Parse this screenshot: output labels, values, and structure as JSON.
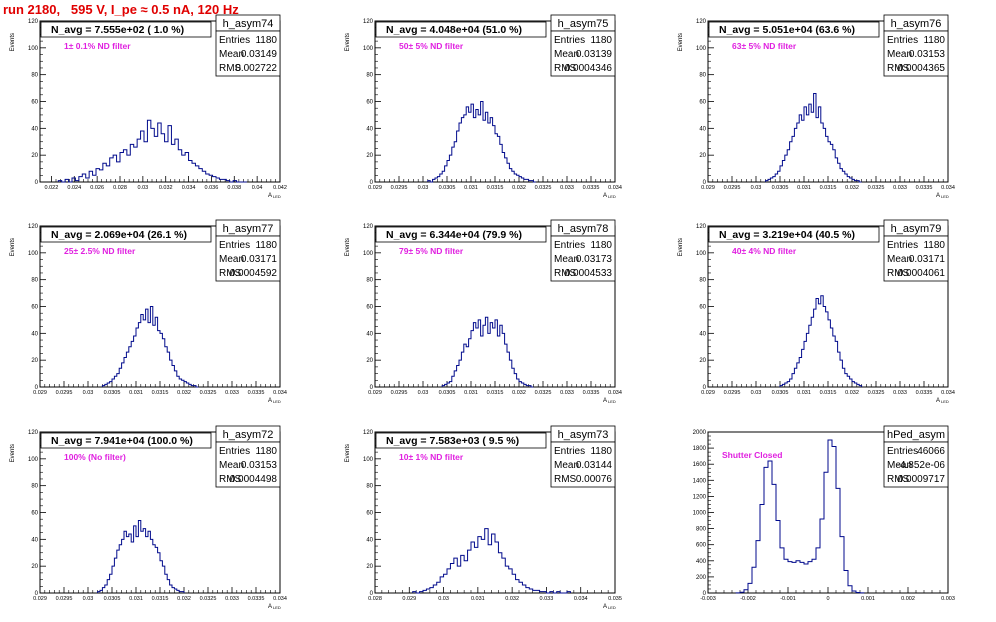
{
  "page_title": "run 2180,   595 V, I_pe ≈ 0.5 nA, 120 Hz",
  "chart_data": [
    {
      "type": "bar",
      "histogram": "h_asym74",
      "title_box": "h_asym74",
      "stats": {
        "entries": "1180",
        "mean": "0.03149",
        "rms": "0.002722"
      },
      "n_avg": "N_avg = 7.555e+02 ( 1.0 %)",
      "filter": "1± 0.1% ND filter",
      "ylabel": "Events",
      "xlabel": "A",
      "xlabel_sub": "LED",
      "xlim": [
        0.021,
        0.042
      ],
      "ylim": [
        0,
        120
      ],
      "xticks": [
        0.022,
        0.024,
        0.026,
        0.028,
        0.03,
        0.032,
        0.034,
        0.036,
        0.038,
        0.04,
        0.042
      ],
      "xtick_labels": [
        "0.022",
        "0.024",
        "0.026",
        "0.028",
        "0.03",
        "0.032",
        "0.034",
        "0.036",
        "0.038",
        "0.04",
        "0.042"
      ],
      "yticks": [
        0,
        20,
        40,
        60,
        80,
        100,
        120
      ],
      "bins": {
        "x0": 0.0226,
        "width": 0.0003,
        "values": [
          1,
          0,
          2,
          0,
          3,
          1,
          4,
          6,
          3,
          8,
          5,
          10,
          9,
          14,
          12,
          18,
          20,
          15,
          22,
          24,
          20,
          28,
          26,
          32,
          38,
          30,
          46,
          40,
          34,
          44,
          36,
          30,
          42,
          28,
          32,
          24,
          20,
          22,
          16,
          14,
          12,
          10,
          8,
          6,
          5,
          4,
          3,
          2,
          2,
          1,
          0,
          1,
          0,
          0,
          0
        ]
      }
    },
    {
      "type": "bar",
      "histogram": "h_asym75",
      "title_box": "h_asym75",
      "stats": {
        "entries": "1180",
        "mean": "0.03139",
        "rms": "0.0004346"
      },
      "n_avg": "N_avg = 4.048e+04 (51.0 %)",
      "filter": "50± 5% ND filter",
      "ylabel": "Events",
      "xlabel": "A",
      "xlabel_sub": "LED",
      "xlim": [
        0.029,
        0.034
      ],
      "ylim": [
        0,
        120
      ],
      "xticks": [
        0.029,
        0.0295,
        0.03,
        0.0305,
        0.031,
        0.0315,
        0.032,
        0.0325,
        0.033,
        0.0335,
        0.034
      ],
      "xtick_labels": [
        "0.029",
        "0.0295",
        "0.03",
        "0.0305",
        "0.031",
        "0.0315",
        "0.032",
        "0.0325",
        "0.033",
        "0.0335",
        "0.034"
      ],
      "yticks": [
        0,
        20,
        40,
        60,
        80,
        100,
        120
      ],
      "bins": {
        "x0": 0.0301,
        "width": 5e-05,
        "values": [
          1,
          0,
          2,
          3,
          4,
          6,
          8,
          12,
          16,
          20,
          26,
          30,
          38,
          44,
          48,
          50,
          56,
          52,
          58,
          48,
          54,
          50,
          60,
          46,
          52,
          44,
          48,
          42,
          36,
          34,
          28,
          22,
          18,
          14,
          10,
          8,
          6,
          5,
          4,
          3,
          2,
          2,
          1,
          1,
          0
        ]
      }
    },
    {
      "type": "bar",
      "histogram": "h_asym76",
      "title_box": "h_asym76",
      "stats": {
        "entries": "1180",
        "mean": "0.03153",
        "rms": "0.0004365"
      },
      "n_avg": "N_avg = 5.051e+04 (63.6 %)",
      "filter": "63± 5% ND filter",
      "ylabel": "Events",
      "xlabel": "A",
      "xlabel_sub": "LED",
      "xlim": [
        0.029,
        0.034
      ],
      "ylim": [
        0,
        120
      ],
      "xticks": [
        0.029,
        0.0295,
        0.03,
        0.0305,
        0.031,
        0.0315,
        0.032,
        0.0325,
        0.033,
        0.0335,
        0.034
      ],
      "xtick_labels": [
        "0.029",
        "0.0295",
        "0.03",
        "0.0305",
        "0.031",
        "0.0315",
        "0.032",
        "0.0325",
        "0.033",
        "0.0335",
        "0.034"
      ],
      "yticks": [
        0,
        20,
        40,
        60,
        80,
        100,
        120
      ],
      "bins": {
        "x0": 0.0302,
        "width": 5e-05,
        "values": [
          1,
          2,
          3,
          4,
          6,
          8,
          12,
          16,
          20,
          24,
          30,
          34,
          40,
          44,
          50,
          46,
          56,
          50,
          58,
          52,
          66,
          48,
          56,
          44,
          40,
          34,
          30,
          28,
          24,
          18,
          14,
          10,
          8,
          6,
          4,
          3,
          2,
          1,
          1,
          0
        ]
      }
    },
    {
      "type": "bar",
      "histogram": "h_asym77",
      "title_box": "h_asym77",
      "stats": {
        "entries": "1180",
        "mean": "0.03171",
        "rms": "0.0004592"
      },
      "n_avg": "N_avg = 2.069e+04 (26.1 %)",
      "filter": "25± 2.5% ND filter",
      "ylabel": "Events",
      "xlabel": "A",
      "xlabel_sub": "LED",
      "xlim": [
        0.029,
        0.034
      ],
      "ylim": [
        0,
        120
      ],
      "xticks": [
        0.029,
        0.0295,
        0.03,
        0.0305,
        0.031,
        0.0315,
        0.032,
        0.0325,
        0.033,
        0.0335,
        0.034
      ],
      "xtick_labels": [
        "0.029",
        "0.0295",
        "0.03",
        "0.0305",
        "0.031",
        "0.0315",
        "0.032",
        "0.0325",
        "0.033",
        "0.0335",
        "0.034"
      ],
      "yticks": [
        0,
        20,
        40,
        60,
        80,
        100,
        120
      ],
      "bins": {
        "x0": 0.0303,
        "width": 5e-05,
        "values": [
          1,
          2,
          3,
          4,
          6,
          8,
          10,
          14,
          18,
          22,
          26,
          30,
          34,
          38,
          44,
          48,
          54,
          50,
          58,
          48,
          60,
          46,
          52,
          42,
          40,
          36,
          30,
          26,
          20,
          16,
          12,
          8,
          6,
          5,
          4,
          3,
          2,
          1,
          1,
          0
        ]
      }
    },
    {
      "type": "bar",
      "histogram": "h_asym78",
      "title_box": "h_asym78",
      "stats": {
        "entries": "1180",
        "mean": "0.03173",
        "rms": "0.0004533"
      },
      "n_avg": "N_avg = 6.344e+04 (79.9 %)",
      "filter": "79± 5% ND filter",
      "ylabel": "Events",
      "xlabel": "A",
      "xlabel_sub": "LED",
      "xlim": [
        0.029,
        0.034
      ],
      "ylim": [
        0,
        120
      ],
      "xticks": [
        0.029,
        0.0295,
        0.03,
        0.0305,
        0.031,
        0.0315,
        0.032,
        0.0325,
        0.033,
        0.0335,
        0.034
      ],
      "xtick_labels": [
        "0.029",
        "0.0295",
        "0.03",
        "0.0305",
        "0.031",
        "0.0315",
        "0.032",
        "0.0325",
        "0.033",
        "0.0335",
        "0.034"
      ],
      "yticks": [
        0,
        20,
        40,
        60,
        80,
        100,
        120
      ],
      "bins": {
        "x0": 0.0304,
        "width": 5e-05,
        "values": [
          1,
          2,
          3,
          4,
          8,
          12,
          16,
          20,
          26,
          32,
          30,
          36,
          42,
          48,
          44,
          50,
          38,
          46,
          52,
          40,
          48,
          44,
          50,
          38,
          46,
          40,
          32,
          26,
          20,
          14,
          10,
          6,
          4,
          3,
          2,
          1,
          1,
          0
        ]
      }
    },
    {
      "type": "bar",
      "histogram": "h_asym79",
      "title_box": "h_asym79",
      "stats": {
        "entries": "1180",
        "mean": "0.03171",
        "rms": "0.0004061"
      },
      "n_avg": "N_avg = 3.219e+04 (40.5 %)",
      "filter": "40± 4% ND filter",
      "ylabel": "Events",
      "xlabel": "A",
      "xlabel_sub": "LED",
      "xlim": [
        0.029,
        0.034
      ],
      "ylim": [
        0,
        120
      ],
      "xticks": [
        0.029,
        0.0295,
        0.03,
        0.0305,
        0.031,
        0.0315,
        0.032,
        0.0325,
        0.033,
        0.0335,
        0.034
      ],
      "xtick_labels": [
        "0.029",
        "0.0295",
        "0.03",
        "0.0305",
        "0.031",
        "0.0315",
        "0.032",
        "0.0325",
        "0.033",
        "0.0335",
        "0.034"
      ],
      "yticks": [
        0,
        20,
        40,
        60,
        80,
        100,
        120
      ],
      "bins": {
        "x0": 0.0305,
        "width": 5e-05,
        "values": [
          1,
          2,
          3,
          4,
          6,
          10,
          14,
          18,
          22,
          28,
          34,
          40,
          46,
          52,
          58,
          66,
          62,
          68,
          60,
          56,
          50,
          44,
          38,
          34,
          26,
          20,
          14,
          10,
          8,
          6,
          4,
          3,
          2,
          1
        ]
      }
    },
    {
      "type": "bar",
      "histogram": "h_asym72",
      "title_box": "h_asym72",
      "stats": {
        "entries": "1180",
        "mean": "0.03153",
        "rms": "0.0004498"
      },
      "n_avg": "N_avg = 7.941e+04 (100.0 %)",
      "filter": "100% (No filter)",
      "ylabel": "Events",
      "xlabel": "A",
      "xlabel_sub": "LED",
      "xlim": [
        0.029,
        0.034
      ],
      "ylim": [
        0,
        120
      ],
      "xticks": [
        0.029,
        0.0295,
        0.03,
        0.0305,
        0.031,
        0.0315,
        0.032,
        0.0325,
        0.033,
        0.0335,
        0.034
      ],
      "xtick_labels": [
        "0.029",
        "0.0295",
        "0.03",
        "0.0305",
        "0.031",
        "0.0315",
        "0.032",
        "0.0325",
        "0.033",
        "0.0335",
        "0.034"
      ],
      "yticks": [
        0,
        20,
        40,
        60,
        80,
        100,
        120
      ],
      "bins": {
        "x0": 0.0302,
        "width": 5e-05,
        "values": [
          1,
          2,
          4,
          6,
          10,
          14,
          20,
          26,
          32,
          36,
          40,
          46,
          42,
          44,
          38,
          50,
          42,
          54,
          46,
          48,
          42,
          46,
          40,
          36,
          34,
          30,
          24,
          20,
          14,
          10,
          6,
          4,
          3,
          2,
          1,
          1
        ]
      }
    },
    {
      "type": "bar",
      "histogram": "h_asym73",
      "title_box": "h_asym73",
      "stats": {
        "entries": "1180",
        "mean": "0.03144",
        "rms": "0.00076"
      },
      "n_avg": "N_avg = 7.583e+03 ( 9.5 %)",
      "filter": "10± 1% ND filter",
      "ylabel": "Events",
      "xlabel": "A",
      "xlabel_sub": "LED",
      "xlim": [
        0.028,
        0.035
      ],
      "ylim": [
        0,
        120
      ],
      "xticks": [
        0.028,
        0.029,
        0.03,
        0.031,
        0.032,
        0.033,
        0.034,
        0.035
      ],
      "xtick_labels": [
        "0.028",
        "0.029",
        "0.03",
        "0.031",
        "0.032",
        "0.033",
        "0.034",
        "0.035"
      ],
      "yticks": [
        0,
        20,
        40,
        60,
        80,
        100,
        120
      ],
      "bins": {
        "x0": 0.0291,
        "width": 0.0001,
        "values": [
          1,
          0,
          1,
          2,
          3,
          4,
          6,
          8,
          12,
          14,
          18,
          22,
          26,
          20,
          28,
          24,
          32,
          38,
          34,
          42,
          40,
          48,
          36,
          44,
          38,
          30,
          26,
          20,
          18,
          14,
          10,
          8,
          6,
          4,
          3,
          2,
          2,
          1,
          1,
          0,
          1,
          0,
          1,
          0,
          0,
          1
        ]
      }
    },
    {
      "type": "bar",
      "histogram": "hPed_asym",
      "title_box": "hPed_asym",
      "stats": {
        "entries": "46066",
        "mean": "-4.852e-06",
        "rms": "0.0009717"
      },
      "n_avg": "",
      "filter": "Shutter Closed",
      "ylabel": "",
      "xlabel": "",
      "xlabel_sub": "",
      "xlim": [
        -0.003,
        0.003
      ],
      "ylim": [
        0,
        2000
      ],
      "xticks": [
        -0.003,
        -0.002,
        -0.001,
        0,
        0.001,
        0.002,
        0.003
      ],
      "xtick_labels": [
        "-0.003",
        "-0.002",
        "-0.001",
        "0",
        "0.001",
        "0.002",
        "0.003"
      ],
      "yticks": [
        0,
        200,
        400,
        600,
        800,
        1000,
        1200,
        1400,
        1600,
        1800,
        2000
      ],
      "bins": {
        "x0": -0.0023,
        "width": 0.0001,
        "values": [
          2,
          10,
          40,
          120,
          320,
          650,
          1100,
          1560,
          1640,
          1350,
          900,
          560,
          420,
          390,
          380,
          400,
          380,
          360,
          390,
          420,
          560,
          920,
          1500,
          1900,
          1820,
          1300,
          700,
          280,
          90,
          25,
          6,
          1
        ]
      }
    }
  ]
}
